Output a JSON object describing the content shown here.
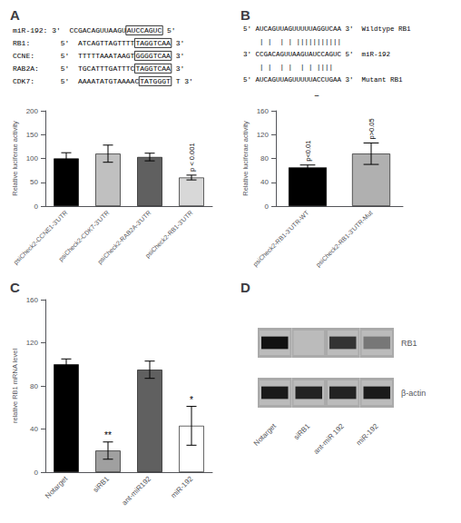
{
  "chart_data": [
    {
      "type": "bar",
      "title": "A",
      "categories": [
        "psiCheck2-CCNE1-3'UTR",
        "psiCheck2-CDK7-3'UTR",
        "psiCheck2-RAB2A-3'UTR",
        "psiCheck2-RB1-3'UTR"
      ],
      "values": [
        100,
        110,
        103,
        60
      ],
      "errors": [
        12,
        18,
        8,
        5
      ],
      "colors": [
        "#000000",
        "#c0c0c0",
        "#606060",
        "#d8d8d8"
      ],
      "ylabel": "Relative luciferae activity",
      "ylim": [
        0,
        200
      ],
      "yticks": [
        0,
        50,
        100,
        150,
        200
      ],
      "grid": false,
      "annotations": [
        {
          "parts": [
            "miR-192: 3'  CCGACAGUUAAGU",
            "AUCCAGUC",
            " 5'"
          ]
        },
        {
          "parts": [
            "RB1:       5'  ATCAGTTAGTTTT",
            "TAGGTCAA",
            " 3'"
          ]
        },
        {
          "parts": [
            "CCNE:      5'  TTTTTAAATAAGT",
            "GGGGTCAA",
            " 3'"
          ]
        },
        {
          "parts": [
            "RAB2A:     5'  TGCATTTGATTTC",
            "TAGGTCAA",
            " 3'"
          ]
        },
        {
          "parts": [
            "CDK7:      5'  AAAATATGTAAAAC",
            "TATGGGT",
            " T 3'"
          ]
        },
        {
          "text": "p < 0.001",
          "category": "psiCheck2-RB1-3'UTR"
        }
      ]
    },
    {
      "type": "bar",
      "title": "B",
      "categories": [
        "psiCheck2-RB1-3'UTR-WT",
        "psiCheck2-RB1-3'UTR-Mut"
      ],
      "values": [
        65,
        88
      ],
      "errors": [
        4,
        18
      ],
      "colors": [
        "#000000",
        "#b0b0b0"
      ],
      "ylabel": "Relative luciferae activity",
      "ylim": [
        0,
        160
      ],
      "yticks": [
        0,
        40,
        80,
        120,
        160
      ],
      "grid": false,
      "annotations": [
        {
          "text": "5' AUCAGUUAGUUUUUAGGUCAA 3'  Wildtype RB1"
        },
        {
          "text": "    | |  | | |||||||||||"
        },
        {
          "text": "3' CCGACAGUUAAGUAUCCAGUC 5'  miR-192"
        },
        {
          "text": "    | |  | |  | | ||||"
        },
        {
          "text": "5' AUCAGUUAGUUUUUACCUGAA 3'  Mutant RB1"
        },
        {
          "text": "                  ̲̲"
        },
        {
          "text": "p<0.01",
          "category": "psiCheck2-RB1-3'UTR-WT"
        },
        {
          "text": "p>0.05",
          "category": "psiCheck2-RB1-3'UTR-Mut"
        }
      ]
    },
    {
      "type": "bar",
      "title": "C",
      "categories": [
        "Notarget",
        "siRB1",
        "ant-miR192",
        "miR-192"
      ],
      "values": [
        100,
        20,
        95,
        43
      ],
      "errors": [
        5,
        8,
        8,
        18
      ],
      "colors": [
        "#000000",
        "#a0a0a0",
        "#606060",
        "#ffffff"
      ],
      "ylabel": "relative RB1 mRNA level",
      "ylim": [
        0,
        160
      ],
      "yticks": [
        0,
        40,
        80,
        120,
        160
      ],
      "grid": false,
      "annotations": [
        {
          "text": "**",
          "category": "siRB1"
        },
        {
          "text": "*",
          "category": "miR-192"
        }
      ]
    },
    {
      "type": "blot",
      "title": "D",
      "categories": [
        "Notarget",
        "siRB1",
        "ant-miR 192",
        "miR-192"
      ],
      "series": [
        {
          "name": "RB1",
          "colors": [
            "#111111",
            null,
            "#333333",
            "#777777"
          ]
        },
        {
          "name": "β-actin",
          "colors": [
            "#1a1a1a",
            "#222222",
            "#222222",
            "#1a1a1a"
          ]
        }
      ]
    }
  ]
}
